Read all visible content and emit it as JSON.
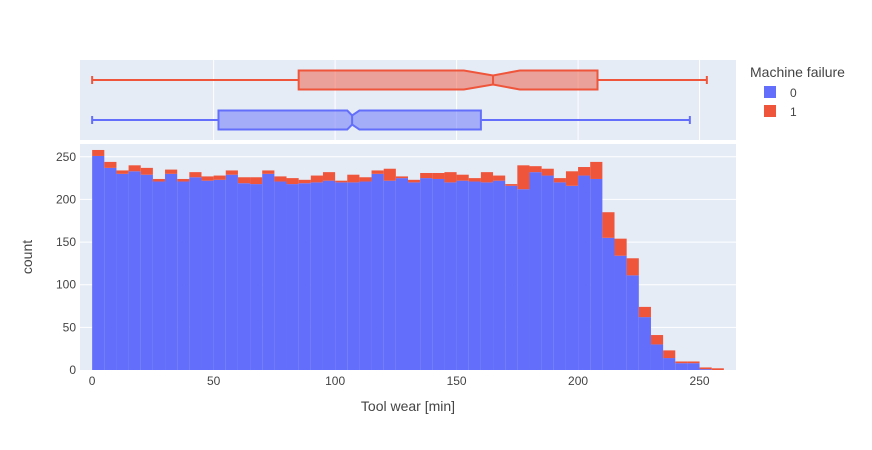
{
  "chart_data": {
    "type": "histogram",
    "xlabel": "Tool wear [min]",
    "ylabel": "count",
    "xlim": [
      -5,
      265
    ],
    "ylim": [
      0,
      265
    ],
    "x_ticks": [
      0,
      50,
      100,
      150,
      200,
      250
    ],
    "y_ticks": [
      0,
      50,
      100,
      150,
      200,
      250
    ],
    "bin_width": 5,
    "bin_start": 0,
    "barmode": "stack",
    "grid": true,
    "legend": {
      "title": "Machine failure",
      "position": "right"
    },
    "series": [
      {
        "name": "0",
        "color": "#636efa",
        "values": [
          251,
          237,
          230,
          233,
          229,
          221,
          230,
          221,
          226,
          222,
          223,
          229,
          219,
          218,
          230,
          221,
          218,
          219,
          220,
          222,
          220,
          220,
          221,
          230,
          222,
          225,
          220,
          225,
          224,
          220,
          222,
          221,
          220,
          222,
          216,
          212,
          232,
          228,
          220,
          216,
          228,
          224,
          155,
          134,
          111,
          62,
          30,
          14,
          8,
          8,
          1,
          0
        ]
      },
      {
        "name": "1",
        "color": "#ef553b",
        "values": [
          7,
          7,
          4,
          7,
          8,
          3,
          5,
          3,
          6,
          5,
          5,
          5,
          7,
          8,
          4,
          6,
          7,
          4,
          8,
          10,
          2,
          9,
          5,
          4,
          14,
          2,
          3,
          6,
          7,
          12,
          7,
          4,
          12,
          6,
          2,
          28,
          7,
          8,
          5,
          17,
          10,
          20,
          30,
          20,
          20,
          12,
          11,
          9,
          2,
          2,
          2,
          2
        ]
      }
    ],
    "box_plots": [
      {
        "name": "0",
        "color": "#636efa",
        "min": 0,
        "q1": 52,
        "median": 107,
        "q3": 160,
        "max": 246,
        "notch_low": 105,
        "notch_high": 110
      },
      {
        "name": "1",
        "color": "#ef553b",
        "min": 0,
        "q1": 85,
        "median": 165,
        "q3": 208,
        "max": 253,
        "notch_low": 153,
        "notch_high": 176
      }
    ]
  }
}
